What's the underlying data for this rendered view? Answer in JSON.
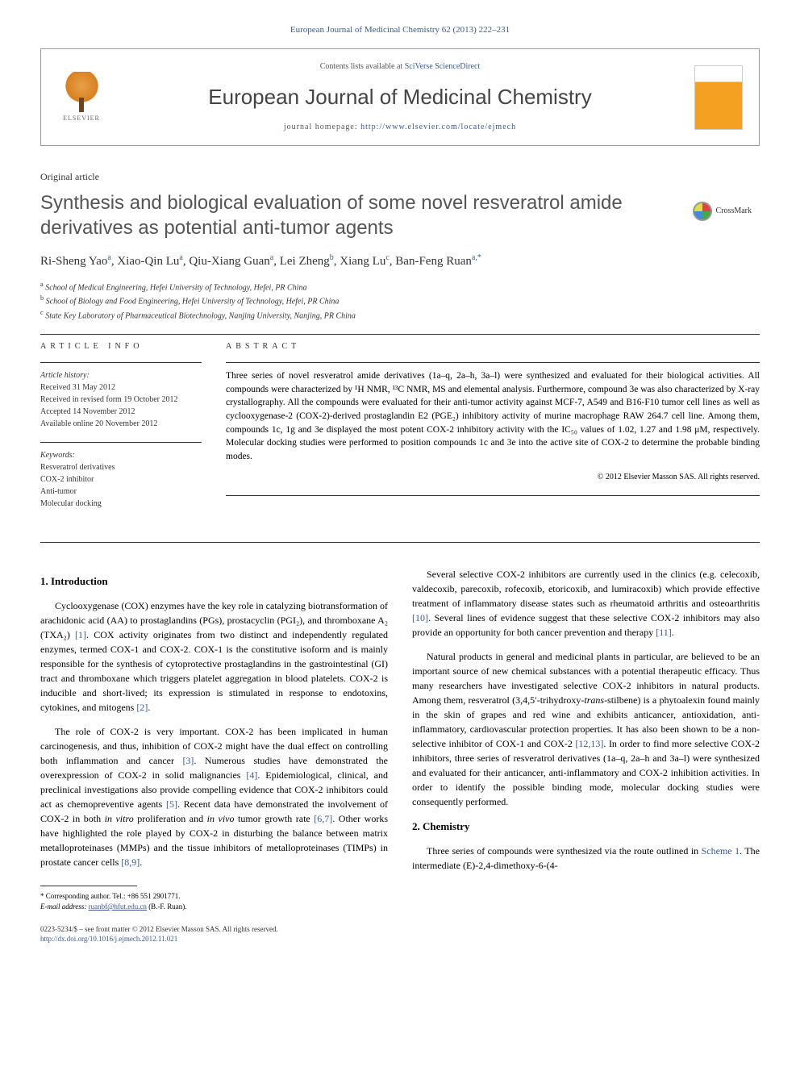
{
  "journal_ref": "European Journal of Medicinal Chemistry 62 (2013) 222–231",
  "header": {
    "contents_prefix": "Contents lists available at ",
    "contents_link": "SciVerse ScienceDirect",
    "journal_name": "European Journal of Medicinal Chemistry",
    "homepage_prefix": "journal homepage: ",
    "homepage_url": "http://www.elsevier.com/locate/ejmech",
    "elsevier_label": "ELSEVIER"
  },
  "crossmark_label": "CrossMark",
  "article_type": "Original article",
  "title": "Synthesis and biological evaluation of some novel resveratrol amide derivatives as potential anti-tumor agents",
  "authors_html": "Ri-Sheng Yao<sup>a</sup>, Xiao-Qin Lu<sup>a</sup>, Qiu-Xiang Guan<sup>a</sup>, Lei Zheng<sup>b</sup>, Xiang Lu<sup>c</sup>, Ban-Feng Ruan<sup>a,*</sup>",
  "affiliations": {
    "a": "School of Medical Engineering, Hefei University of Technology, Hefei, PR China",
    "b": "School of Biology and Food Engineering, Hefei University of Technology, Hefei, PR China",
    "c": "State Key Laboratory of Pharmaceutical Biotechnology, Nanjing University, Nanjing, PR China"
  },
  "article_info": {
    "section_label": "ARTICLE INFO",
    "history_label": "Article history:",
    "received": "Received 31 May 2012",
    "revised": "Received in revised form 19 October 2012",
    "accepted": "Accepted 14 November 2012",
    "online": "Available online 20 November 2012",
    "keywords_label": "Keywords:",
    "keywords": [
      "Resveratrol derivatives",
      "COX-2 inhibitor",
      "Anti-tumor",
      "Molecular docking"
    ]
  },
  "abstract": {
    "section_label": "ABSTRACT",
    "text": "Three series of novel resveratrol amide derivatives (1a–q, 2a–h, 3a–l) were synthesized and evaluated for their biological activities. All compounds were characterized by ¹H NMR, ¹³C NMR, MS and elemental analysis. Furthermore, compound 3e was also characterized by X-ray crystallography. All the compounds were evaluated for their anti-tumor activity against MCF-7, A549 and B16-F10 tumor cell lines as well as cyclooxygenase-2 (COX-2)-derived prostaglandin E2 (PGE₂) inhibitory activity of murine macrophage RAW 264.7 cell line. Among them, compounds 1c, 1g and 3e displayed the most potent COX-2 inhibitory activity with the IC₅₀ values of 1.02, 1.27 and 1.98 μM, respectively. Molecular docking studies were performed to position compounds 1c and 3e into the active site of COX-2 to determine the probable binding modes.",
    "copyright": "© 2012 Elsevier Masson SAS. All rights reserved."
  },
  "body": {
    "intro_heading": "1. Introduction",
    "chem_heading": "2. Chemistry",
    "p1": "Cyclooxygenase (COX) enzymes have the key role in catalyzing biotransformation of arachidonic acid (AA) to prostaglandins (PGs), prostacyclin (PGI₂), and thromboxane A₂ (TXA₂) [1]. COX activity originates from two distinct and independently regulated enzymes, termed COX-1 and COX-2. COX-1 is the constitutive isoform and is mainly responsible for the synthesis of cytoprotective prostaglandins in the gastrointestinal (GI) tract and thromboxane which triggers platelet aggregation in blood platelets. COX-2 is inducible and short-lived; its expression is stimulated in response to endotoxins, cytokines, and mitogens [2].",
    "p2": "The role of COX-2 is very important. COX-2 has been implicated in human carcinogenesis, and thus, inhibition of COX-2 might have the dual effect on controlling both inflammation and cancer [3]. Numerous studies have demonstrated the overexpression of COX-2 in solid malignancies [4]. Epidemiological, clinical, and preclinical investigations also provide compelling evidence that COX-2 inhibitors could act as chemopreventive agents [5]. Recent data have demonstrated the involvement of COX-2 in both in vitro proliferation and in vivo tumor growth rate [6,7]. Other works have highlighted the role played by COX-2 in disturbing the balance between matrix metalloproteinases (MMPs) and the tissue inhibitors of metalloproteinases (TIMPs) in prostate cancer cells [8,9].",
    "p3": "Several selective COX-2 inhibitors are currently used in the clinics (e.g. celecoxib, valdecoxib, parecoxib, rofecoxib, etoricoxib, and lumiracoxib) which provide effective treatment of inflammatory disease states such as rheumatoid arthritis and osteoarthritis [10]. Several lines of evidence suggest that these selective COX-2 inhibitors may also provide an opportunity for both cancer prevention and therapy [11].",
    "p4": "Natural products in general and medicinal plants in particular, are believed to be an important source of new chemical substances with a potential therapeutic efficacy. Thus many researchers have investigated selective COX-2 inhibitors in natural products. Among them, resveratrol (3,4,5′-trihydroxy-trans-stilbene) is a phytoalexin found mainly in the skin of grapes and red wine and exhibits anticancer, antioxidation, anti-inflammatory, cardiovascular protection properties. It has also been shown to be a non-selective inhibitor of COX-1 and COX-2 [12,13]. In order to find more selective COX-2 inhibitors, three series of resveratrol derivatives (1a–q, 2a–h and 3a–l) were synthesized and evaluated for their anticancer, anti-inflammatory and COX-2 inhibition activities. In order to identify the possible binding mode, molecular docking studies were consequently performed.",
    "p5": "Three series of compounds were synthesized via the route outlined in Scheme 1. The intermediate (E)-2,4-dimethoxy-6-(4-"
  },
  "footnote": {
    "corr": "* Corresponding author. Tel.: +86 551 2901771.",
    "email_label": "E-mail address:",
    "email": "ruanbf@hfut.edu.cn",
    "email_suffix": "(B.-F. Ruan)."
  },
  "footer": {
    "issn": "0223-5234/$ – see front matter © 2012 Elsevier Masson SAS. All rights reserved.",
    "doi": "http://dx.doi.org/10.1016/j.ejmech.2012.11.021"
  },
  "colors": {
    "link": "#3b5998",
    "text": "#333333",
    "title_gray": "#555555"
  }
}
